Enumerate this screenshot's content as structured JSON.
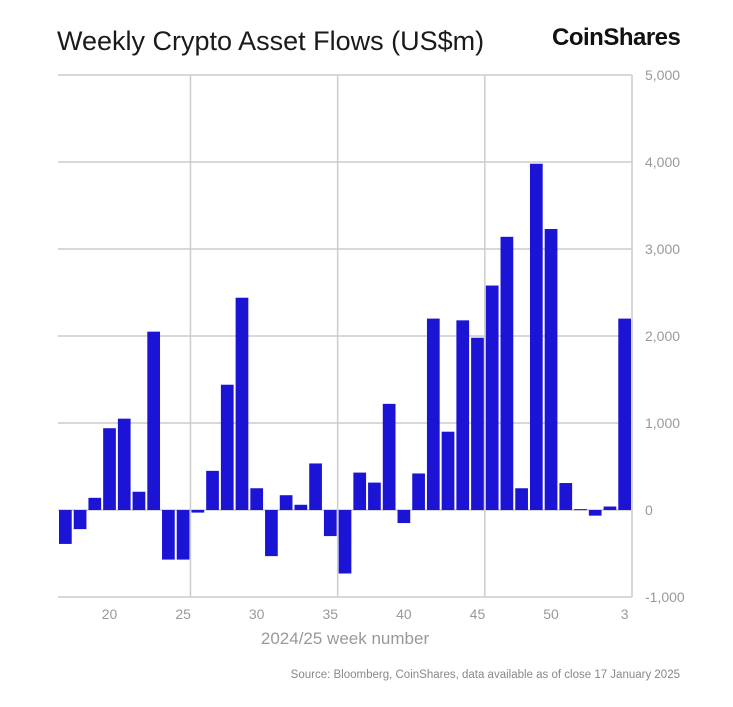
{
  "header": {
    "title": "Weekly Crypto Asset Flows (US$m)",
    "logo": "CoinShares"
  },
  "source": "Source: Bloomberg, CoinShares, data available as of close 17 January 2025",
  "colors": {
    "bar": "#1c14d4",
    "grid": "#cccccc",
    "axis_text": "#999999"
  },
  "chart_data": {
    "type": "bar",
    "title": "Weekly Crypto Asset Flows (US$m)",
    "xlabel": "2024/25 week number",
    "ylabel": "",
    "ylim": [
      -1000,
      5000
    ],
    "yticks": [
      5000,
      4000,
      3000,
      2000,
      1000,
      0,
      -1000
    ],
    "ytick_labels": [
      "5,000",
      "4,000",
      "3,000",
      "2,000",
      "1,000",
      "0",
      "-1,000"
    ],
    "xtick_labels": [
      "20",
      "25",
      "30",
      "35",
      "40",
      "45",
      "50",
      "3"
    ],
    "grid": true,
    "y_axis_position": "right",
    "categories": [
      "17",
      "18",
      "19",
      "20",
      "21",
      "22",
      "23",
      "24",
      "25",
      "26",
      "27",
      "28",
      "29",
      "30",
      "31",
      "32",
      "33",
      "34",
      "35",
      "36",
      "37",
      "38",
      "39",
      "40",
      "41",
      "42",
      "43",
      "44",
      "45",
      "46",
      "47",
      "48",
      "49",
      "50",
      "51",
      "52",
      "1",
      "2",
      "3"
    ],
    "values": [
      -390,
      -220,
      140,
      940,
      1050,
      210,
      2050,
      -570,
      -570,
      -30,
      450,
      1440,
      2440,
      250,
      -530,
      170,
      60,
      535,
      -300,
      -730,
      430,
      315,
      1220,
      -150,
      420,
      2200,
      900,
      2180,
      1980,
      2580,
      3140,
      250,
      3980,
      3230,
      310,
      10,
      -65,
      40,
      2200
    ]
  }
}
